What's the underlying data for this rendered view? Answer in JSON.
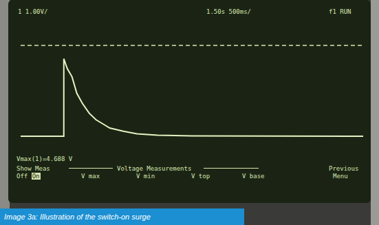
{
  "chart_data": {
    "type": "line",
    "x": [
      0,
      0.63,
      0.63,
      0.68,
      0.75,
      0.82,
      0.9,
      1.0,
      1.1,
      1.2,
      1.3,
      1.5,
      1.7,
      2.0,
      2.5,
      5.0
    ],
    "values": [
      0,
      0,
      4.69,
      4.1,
      3.6,
      2.6,
      2.0,
      1.4,
      1.0,
      0.75,
      0.5,
      0.3,
      0.15,
      0.06,
      0.02,
      0
    ],
    "color": "#e6f2c2",
    "xlim": [
      0,
      5
    ],
    "ylim": [
      -1,
      7
    ],
    "xticks": [
      0,
      0.5,
      1,
      1.5,
      2,
      2.5,
      3,
      3.5,
      4,
      4.5,
      5
    ],
    "yticks": [
      -1,
      0,
      1,
      2,
      3,
      4,
      5,
      6,
      7
    ],
    "grid": true,
    "tick_labels": false,
    "cursor_level": 5.5
  },
  "screen": {
    "channel": "1  1.00V/",
    "timebase": "1.50s  500ms/",
    "status": "f1 RUN",
    "measurement": "Vmax(1)=4.688 V",
    "menu": {
      "show_meas": "Show Meas",
      "off": "Off",
      "on": "On",
      "group": "Voltage Measurements",
      "items": [
        "V max",
        "V min",
        "V top",
        "V base"
      ],
      "previous": "Previous",
      "menu": "Menu"
    }
  },
  "caption": "Image 3a: Illustration of the switch-on surge"
}
